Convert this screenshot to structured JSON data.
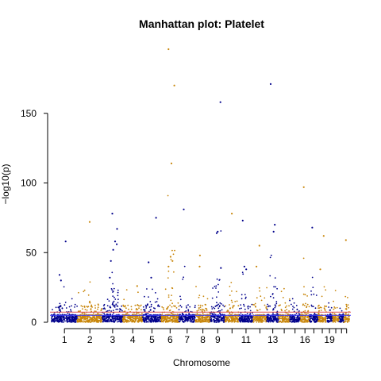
{
  "chart_data": {
    "type": "scatter",
    "title": "Manhattan plot: Platelet",
    "xlabel": "Chromosome",
    "ylabel": "−log10(p)",
    "ylim": [
      0,
      200
    ],
    "y_ticks": [
      0,
      50,
      100,
      150
    ],
    "x_tick_labels": [
      "1",
      "2",
      "3",
      "4",
      "5",
      "6",
      "7",
      "8",
      "9",
      "11",
      "13",
      "16",
      "19"
    ],
    "chromosomes": [
      1,
      2,
      3,
      4,
      5,
      6,
      7,
      8,
      9,
      10,
      11,
      12,
      13,
      14,
      15,
      16,
      17,
      18,
      19,
      20,
      21,
      22
    ],
    "colors": {
      "odd": "#00008B",
      "even": "#C8860A"
    },
    "threshold_lines": [
      {
        "y": 5.0,
        "color": "#3c3cff"
      },
      {
        "y": 7.3,
        "color": "#dd5555"
      }
    ],
    "top_hits": [
      {
        "chr": 1,
        "y": 34
      },
      {
        "chr": 1,
        "y": 58
      },
      {
        "chr": 1,
        "y": 30
      },
      {
        "chr": 2,
        "y": 72
      },
      {
        "chr": 3,
        "y": 78
      },
      {
        "chr": 3,
        "y": 67
      },
      {
        "chr": 3,
        "y": 58
      },
      {
        "chr": 3,
        "y": 56
      },
      {
        "chr": 3,
        "y": 52
      },
      {
        "chr": 3,
        "y": 44
      },
      {
        "chr": 3,
        "y": 32
      },
      {
        "chr": 4,
        "y": 26
      },
      {
        "chr": 5,
        "y": 75
      },
      {
        "chr": 5,
        "y": 43
      },
      {
        "chr": 5,
        "y": 32
      },
      {
        "chr": 6,
        "y": 196
      },
      {
        "chr": 6,
        "y": 170
      },
      {
        "chr": 6,
        "y": 114
      },
      {
        "chr": 6,
        "y": 47
      },
      {
        "chr": 6,
        "y": 44
      },
      {
        "chr": 6,
        "y": 40
      },
      {
        "chr": 7,
        "y": 81
      },
      {
        "chr": 8,
        "y": 48
      },
      {
        "chr": 8,
        "y": 40
      },
      {
        "chr": 9,
        "y": 158
      },
      {
        "chr": 9,
        "y": 65
      },
      {
        "chr": 9,
        "y": 64
      },
      {
        "chr": 9,
        "y": 39
      },
      {
        "chr": 10,
        "y": 78
      },
      {
        "chr": 11,
        "y": 73
      },
      {
        "chr": 11,
        "y": 40
      },
      {
        "chr": 11,
        "y": 38
      },
      {
        "chr": 12,
        "y": 55
      },
      {
        "chr": 12,
        "y": 40
      },
      {
        "chr": 13,
        "y": 171
      },
      {
        "chr": 13,
        "y": 70
      },
      {
        "chr": 13,
        "y": 65
      },
      {
        "chr": 16,
        "y": 97
      },
      {
        "chr": 17,
        "y": 68
      },
      {
        "chr": 18,
        "y": 62
      },
      {
        "chr": 18,
        "y": 38
      },
      {
        "chr": 22,
        "y": 59
      }
    ]
  }
}
